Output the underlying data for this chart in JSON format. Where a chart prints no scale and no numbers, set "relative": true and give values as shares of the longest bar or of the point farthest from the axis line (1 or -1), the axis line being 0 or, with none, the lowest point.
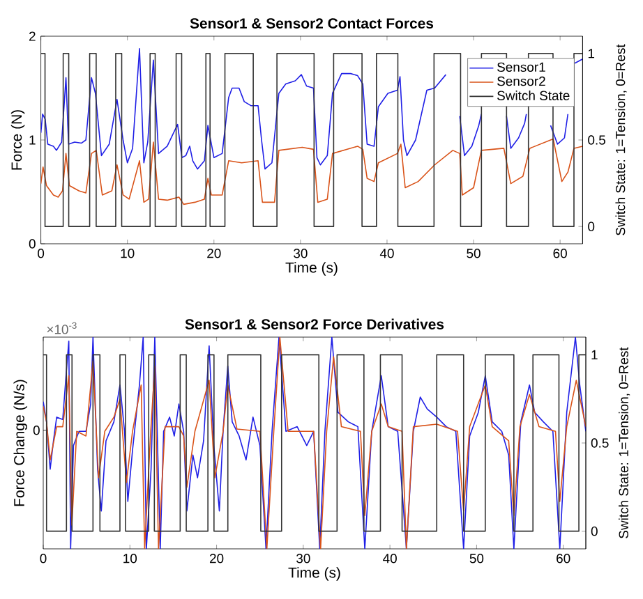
{
  "chart_data": [
    {
      "type": "line",
      "title": "Sensor1 & Sensor2 Contact Forces",
      "xlabel": "Time (s)",
      "ylabel": "Force (N)",
      "y2label": "Switch State: 1=Tension, 0=Rest",
      "xlim": [
        0,
        62.6
      ],
      "ylim": [
        0,
        2
      ],
      "y2lim": [
        -0.1,
        1.1
      ],
      "xticks": [
        0,
        10,
        20,
        30,
        40,
        50,
        60
      ],
      "yticks": [
        0,
        1,
        2
      ],
      "y2ticks": [
        0,
        0.5,
        1
      ],
      "legend": "top right",
      "series": [
        {
          "name": "Sensor1",
          "color": "#1f1fe6",
          "x": [
            0,
            0.2,
            0.5,
            0.8,
            1.45,
            1.8,
            2.4,
            2.9,
            3.2,
            3.9,
            4.7,
            5.2,
            5.85,
            6.3,
            7.0,
            7.9,
            8.8,
            9.5,
            10.0,
            10.6,
            11.4,
            11.9,
            12.35,
            13.0,
            13.6,
            14.6,
            15.8,
            16.3,
            16.75,
            17.2,
            17.55,
            18.1,
            18.9,
            19.3,
            20.0,
            20.95,
            21.7,
            22.1,
            22.9,
            23.5,
            24.3,
            25.1,
            25.5,
            25.9,
            26.7,
            27.5,
            28.3,
            29.4,
            30.1,
            30.7,
            31.5,
            31.9,
            32.3,
            33.1,
            33.7,
            34.75,
            35.8,
            36.6,
            37.2,
            37.7,
            38.5,
            39.0,
            40.1,
            41.2,
            41.5,
            41.9,
            42.3,
            43.3,
            44.6,
            45.5,
            46.8,
            47.6,
            48.4,
            48.95,
            49.8,
            50.6,
            50.9,
            52.0,
            53.8,
            54.3,
            55.2,
            55.9,
            56.1,
            57.5,
            58.9,
            59.7,
            60.5,
            60.9,
            61.3,
            61.7,
            62.6
          ],
          "values": [
            1.07,
            1.25,
            1.2,
            0.96,
            0.94,
            0.9,
            0.98,
            1.6,
            0.96,
            0.98,
            0.97,
            1.0,
            1.6,
            1.45,
            0.85,
            0.96,
            1.39,
            1.0,
            0.78,
            0.92,
            1.88,
            0.78,
            0.98,
            1.77,
            0.87,
            0.94,
            1.15,
            0.83,
            0.85,
            0.94,
            0.8,
            0.72,
            0.8,
            1.14,
            0.83,
            0.87,
            1.41,
            1.5,
            1.5,
            1.37,
            1.33,
            1.33,
            1.0,
            0.72,
            0.78,
            1.45,
            1.54,
            1.57,
            1.63,
            1.52,
            1.5,
            0.83,
            0.76,
            0.85,
            1.45,
            1.64,
            1.64,
            1.62,
            1.54,
            0.96,
            0.94,
            1.32,
            1.45,
            1.48,
            1.61,
            1.0,
            0.85,
            1.0,
            1.48,
            1.5,
            1.63,
            null,
            1.23,
            0.85,
            0.94,
            1.14,
            1.25,
            null,
            1.23,
            0.92,
            1.02,
            1.16,
            1.25,
            null,
            1.14,
            0.96,
            1.02,
            1.25,
            null,
            1.74,
            1.78
          ]
        },
        {
          "name": "Sensor2",
          "color": "#d95319",
          "x": [
            0,
            0.25,
            0.65,
            1.45,
            2.0,
            2.5,
            2.9,
            3.3,
            4.4,
            5.2,
            5.85,
            6.4,
            7.1,
            8.2,
            8.8,
            9.5,
            10.2,
            11.4,
            11.9,
            12.45,
            13.0,
            13.6,
            14.6,
            15.95,
            16.5,
            17.8,
            18.9,
            19.3,
            19.7,
            20.95,
            21.7,
            23.2,
            25.1,
            25.6,
            27.0,
            27.5,
            30.2,
            31.5,
            32.0,
            33.1,
            33.7,
            36.6,
            37.2,
            37.7,
            38.5,
            39.0,
            41.2,
            41.6,
            42.1,
            43.6,
            45.5,
            47.6,
            48.4,
            48.7,
            50.0,
            50.9,
            53.5,
            54.3,
            55.7,
            56.5,
            59.2,
            60.2,
            60.9,
            61.6,
            62.6
          ],
          "values": [
            0.58,
            0.74,
            0.56,
            0.47,
            0.45,
            0.51,
            0.87,
            0.56,
            0.51,
            0.49,
            0.87,
            0.9,
            0.47,
            0.51,
            0.76,
            0.47,
            0.43,
            0.8,
            0.4,
            0.43,
            0.98,
            0.43,
            0.42,
            0.45,
            0.38,
            0.4,
            0.43,
            0.63,
            0.47,
            0.47,
            0.8,
            0.78,
            0.8,
            0.4,
            0.4,
            0.9,
            0.93,
            0.91,
            0.4,
            0.43,
            0.87,
            0.94,
            0.91,
            0.63,
            0.6,
            0.78,
            0.87,
            0.96,
            0.54,
            0.6,
            0.76,
            0.9,
            0.87,
            0.47,
            0.54,
            0.9,
            0.92,
            0.58,
            0.65,
            0.92,
            1.01,
            0.6,
            0.69,
            0.92,
            0.94
          ]
        },
        {
          "name": "Switch State",
          "color": "#333333",
          "type": "step",
          "axis": "y2",
          "x": [
            0,
            0.48,
            2.58,
            3.22,
            5.64,
            6.39,
            8.65,
            9.34,
            12.62,
            13.21,
            15.63,
            16.27,
            19.07,
            19.55,
            21.27,
            24.54,
            27.28,
            31.57,
            33.83,
            37.11,
            38.78,
            41.25,
            45.43,
            48.5,
            50.91,
            53.81,
            56.34,
            59.18,
            61.6,
            62.6
          ],
          "values": [
            1,
            0,
            1,
            0,
            1,
            0,
            1,
            0,
            1,
            0,
            1,
            0,
            1,
            0,
            1,
            0,
            1,
            0,
            1,
            0,
            1,
            0,
            1,
            0,
            1,
            0,
            1,
            0,
            1,
            1
          ]
        }
      ]
    },
    {
      "type": "line",
      "title": "Sensor1 & Sensor2 Force Derivatives",
      "xlabel": "Time (s)",
      "ylabel": "Force Change (N/s)",
      "y2label": "Switch State: 1=Tension, 0=Rest",
      "annotations": [
        "×10$^{-3}$",
        "0"
      ],
      "relative": true,
      "xlim": [
        0,
        62.6
      ],
      "y2lim": [
        -0.1,
        1.1
      ],
      "xticks": [
        0,
        10,
        20,
        30,
        40,
        50,
        60
      ],
      "y2ticks": [
        0,
        0.5,
        1
      ],
      "series": [
        {
          "color": "#1f1fe6",
          "x": [
            0,
            0.38,
            0.8,
            1.18,
            1.55,
            2.25,
            2.63,
            2.95,
            3.16,
            3.49,
            4.13,
            4.93,
            5.47,
            5.74,
            6.27,
            6.7,
            7.24,
            8.15,
            8.85,
            9.38,
            9.76,
            10.3,
            11.1,
            11.53,
            11.9,
            12.44,
            12.87,
            13.5,
            13.89,
            14.58,
            15.12,
            15.65,
            16.2,
            16.57,
            17.27,
            17.8,
            18.5,
            19.14,
            19.68,
            20.32,
            20.75,
            21.29,
            21.8,
            22.6,
            23.4,
            24.2,
            25.0,
            25.7,
            26.4,
            27.2,
            28.0,
            29.3,
            30.4,
            31.2,
            31.9,
            32.5,
            33.3,
            34.0,
            35.2,
            36.3,
            37.1,
            37.9,
            39.0,
            39.8,
            40.9,
            41.9,
            42.7,
            43.5,
            44.3,
            45.4,
            46.5,
            47.6,
            48.5,
            49.2,
            50.2,
            51.0,
            51.8,
            52.9,
            53.7,
            54.3,
            55.1,
            56.1,
            56.7,
            57.7,
            58.8,
            59.6,
            60.4,
            61.4,
            61.9,
            62.6
          ],
          "values": [
            0.695,
            0.6,
            0.376,
            0.51,
            0.622,
            0.611,
            0.818,
            0.981,
            0,
            0.488,
            0.555,
            0.555,
            0.684,
            1,
            0.376,
            0.179,
            0.51,
            0.6,
            0.774,
            0.555,
            0.224,
            0.465,
            0.774,
            1,
            0,
            0.376,
            1,
            0,
            0.555,
            0.622,
            0.533,
            0.684,
            0.555,
            0.179,
            0.443,
            0.336,
            0.51,
            0.959,
            0.488,
            0.179,
            0.555,
            0.863,
            0.6,
            0.533,
            0.42,
            0.622,
            0.488,
            0,
            0.555,
            1,
            0.555,
            0.577,
            0.488,
            0.555,
            0,
            0.555,
            1,
            0.645,
            0.6,
            0.577,
            0,
            0.555,
            0.818,
            0.577,
            0.555,
            0,
            0.555,
            0.717,
            0.661,
            0.622,
            0.577,
            0.555,
            0,
            0.533,
            0.645,
            0.818,
            0.6,
            0.555,
            0.443,
            0,
            0.6,
            0.774,
            0.645,
            0.6,
            0.555,
            0,
            0.645,
            1,
            0.774,
            0.555
          ]
        },
        {
          "color": "#d95319",
          "x": [
            0,
            0.38,
            0.8,
            1.55,
            2.25,
            2.95,
            3.3,
            3.86,
            4.93,
            5.74,
            6.38,
            7.1,
            8.15,
            8.85,
            9.6,
            10.3,
            11.3,
            11.7,
            12.4,
            12.87,
            13.3,
            14.05,
            15.65,
            16.2,
            16.57,
            17.5,
            19.14,
            19.8,
            20.75,
            21.29,
            22.35,
            25.0,
            25.8,
            26.6,
            27.3,
            28.25,
            31.2,
            32.0,
            32.7,
            33.5,
            34.4,
            36.6,
            37.1,
            37.9,
            39.0,
            39.8,
            41.4,
            41.9,
            42.7,
            45.4,
            47.8,
            48.5,
            49.2,
            51.0,
            51.8,
            53.7,
            54.3,
            55.0,
            56.1,
            57.2,
            59.1,
            59.6,
            60.4,
            61.5,
            62.6
          ],
          "values": [
            0.673,
            0.6,
            0.42,
            0.577,
            0.577,
            0.818,
            0.112,
            0.555,
            0.533,
            0.886,
            0.336,
            0.555,
            0.622,
            0.706,
            0.314,
            0.555,
            0.774,
            0,
            0.555,
            0.863,
            0,
            0.577,
            0.577,
            0.533,
            0.291,
            0.555,
            0.796,
            0.336,
            0.555,
            0.774,
            0.566,
            0.555,
            0,
            0.555,
            1,
            0.555,
            0.555,
            0,
            0.555,
            0.908,
            0.577,
            0.555,
            0.157,
            0.555,
            0.684,
            0.577,
            0.555,
            0,
            0.577,
            0.589,
            0.555,
            0.179,
            0.577,
            0.774,
            0.577,
            0.51,
            0.157,
            0.577,
            0.729,
            0.577,
            0.555,
            0.224,
            0.577,
            0.796,
            0.577
          ]
        },
        {
          "color": "#333333",
          "type": "step",
          "axis": "y2",
          "x": [
            0,
            0.38,
            2.68,
            3.32,
            5.74,
            6.54,
            8.85,
            9.49,
            12.17,
            12.82,
            15.8,
            16.5,
            19.0,
            19.7,
            21.3,
            25.1,
            27.5,
            31.8,
            33.9,
            37.0,
            38.9,
            41.4,
            45.4,
            48.5,
            51.0,
            54.3,
            56.5,
            59.5,
            61.8,
            62.6
          ],
          "values": [
            1,
            0,
            1,
            0,
            1,
            0,
            1,
            0,
            1,
            0,
            1,
            0,
            1,
            0,
            1,
            0,
            1,
            0,
            1,
            0,
            1,
            0,
            1,
            0,
            1,
            0,
            1,
            0,
            1,
            1
          ]
        }
      ]
    }
  ]
}
